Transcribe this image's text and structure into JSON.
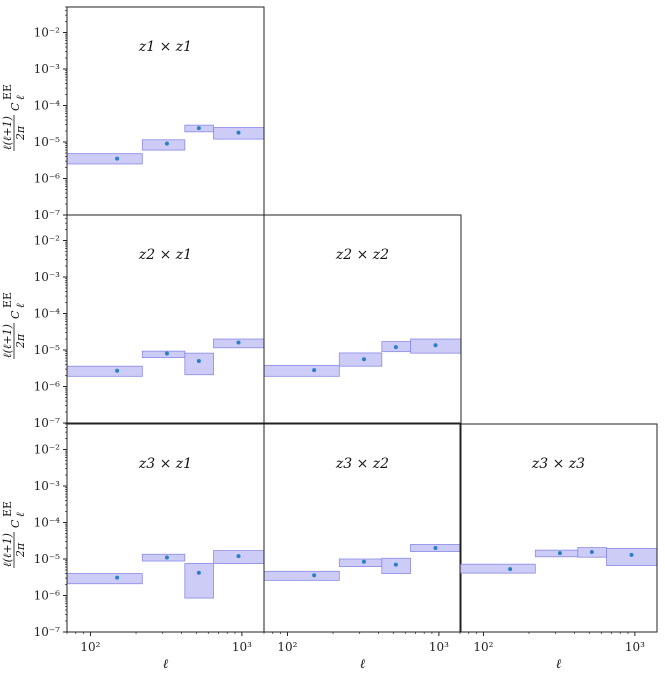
{
  "chart_data": {
    "type": "scatter",
    "layout": "lower-triangular grid of panels",
    "xlabel": "ℓ",
    "ylabel": {
      "num": "ℓ(ℓ+1)",
      "den": "2π",
      "main": "C",
      "sup": "EE",
      "sub": "ℓ"
    },
    "xscale": "log",
    "yscale": "log",
    "xlim": [
      70,
      1400
    ],
    "ylim": [
      1e-07,
      0.05
    ],
    "ytick_labels": [
      "10⁻²",
      "10⁻³",
      "10⁻⁴",
      "10⁻⁵",
      "10⁻⁶",
      "10⁻⁷"
    ],
    "xtick_labels": [
      "10²",
      "10³"
    ],
    "band_color": "#c6c6f6",
    "band_edge_color": "#8a8ae8",
    "point_color": "#2b7fc6",
    "bins_edges": [
      [
        70,
        220
      ],
      [
        220,
        420
      ],
      [
        420,
        650
      ],
      [
        650,
        1400
      ]
    ],
    "panels": [
      {
        "row": 0,
        "col": 0,
        "label": "z1 × z1",
        "x": [
          150,
          320,
          520,
          950
        ],
        "y": [
          3.5e-06,
          9e-06,
          2.4e-05,
          1.8e-05
        ],
        "band_low": [
          2.5e-06,
          6e-06,
          1.9e-05,
          1.2e-05
        ],
        "band_high": [
          4.8e-06,
          1.15e-05,
          2.9e-05,
          2.5e-05
        ]
      },
      {
        "row": 1,
        "col": 0,
        "label": "z2 × z1",
        "x": [
          150,
          320,
          520,
          950
        ],
        "y": [
          2.7e-06,
          8e-06,
          5e-06,
          1.6e-05
        ],
        "band_low": [
          1.9e-06,
          6.2e-06,
          2.1e-06,
          1.15e-05
        ],
        "band_high": [
          3.6e-06,
          9.3e-06,
          8.2e-06,
          2e-05
        ]
      },
      {
        "row": 1,
        "col": 1,
        "label": "z2 × z2",
        "x": [
          150,
          320,
          520,
          950
        ],
        "y": [
          2.8e-06,
          5.6e-06,
          1.2e-05,
          1.35e-05
        ],
        "band_low": [
          1.9e-06,
          3.6e-06,
          9e-06,
          8.2e-06
        ],
        "band_high": [
          3.8e-06,
          8.3e-06,
          1.7e-05,
          2e-05
        ]
      },
      {
        "row": 2,
        "col": 0,
        "label": "z3 × z1",
        "x": [
          150,
          320,
          520,
          950
        ],
        "y": [
          3.1e-06,
          1.1e-05,
          4.2e-06,
          1.2e-05
        ],
        "band_low": [
          2.1e-06,
          8.8e-06,
          8.5e-07,
          7.5e-06
        ],
        "band_high": [
          4e-06,
          1.35e-05,
          7.6e-06,
          1.7e-05
        ]
      },
      {
        "row": 2,
        "col": 1,
        "label": "z3 × z2",
        "x": [
          150,
          320,
          520,
          950
        ],
        "y": [
          3.6e-06,
          8.4e-06,
          7e-06,
          2e-05
        ],
        "band_low": [
          2.6e-06,
          6.2e-06,
          4e-06,
          1.6e-05
        ],
        "band_high": [
          4.6e-06,
          1e-05,
          1.05e-05,
          2.5e-05
        ]
      },
      {
        "row": 2,
        "col": 2,
        "label": "z3 × z3",
        "x": [
          150,
          320,
          520,
          950
        ],
        "y": [
          5.3e-06,
          1.45e-05,
          1.55e-05,
          1.3e-05
        ],
        "band_low": [
          4.1e-06,
          1.15e-05,
          1.12e-05,
          6.6e-06
        ],
        "band_high": [
          7.2e-06,
          1.75e-05,
          2.05e-05,
          1.95e-05
        ]
      }
    ]
  }
}
